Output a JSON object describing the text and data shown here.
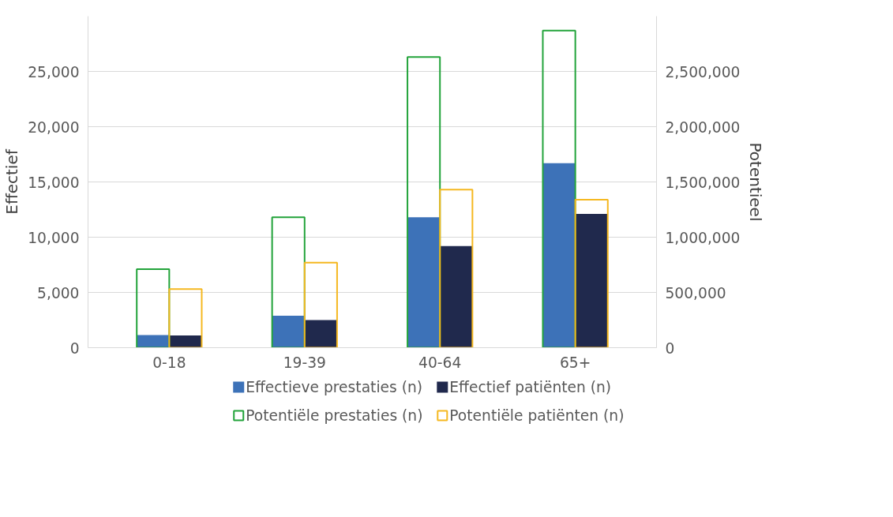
{
  "chart_data": {
    "type": "bar",
    "categories": [
      "0-18",
      "19-39",
      "40-64",
      "65+"
    ],
    "ylabel": "Effectief",
    "y2label": "Potentieel",
    "ylim": [
      0,
      30000
    ],
    "yticks": [
      {
        "value": 0,
        "label": "0"
      },
      {
        "value": 5000,
        "label": "5,000"
      },
      {
        "value": 10000,
        "label": "10,000"
      },
      {
        "value": 15000,
        "label": "15,000"
      },
      {
        "value": 20000,
        "label": "20,000"
      },
      {
        "value": 25000,
        "label": "25,000"
      }
    ],
    "y2lim": [
      0,
      3000000
    ],
    "y2ticks": [
      {
        "value": 0,
        "label": "0"
      },
      {
        "value": 500000,
        "label": "500,000"
      },
      {
        "value": 1000000,
        "label": "1,000,000"
      },
      {
        "value": 1500000,
        "label": "1,500,000"
      },
      {
        "value": 2000000,
        "label": "2,000,000"
      },
      {
        "value": 2500000,
        "label": "2,500,000"
      }
    ],
    "grid": "y",
    "legend": "bottom",
    "series": [
      {
        "name": "Effectieve prestaties (n)",
        "color": "#3d72b8",
        "values": [
          1150,
          2900,
          11800,
          16700
        ]
      },
      {
        "name": "Effectief patiënten (n)",
        "color": "#20294d",
        "values": [
          1100,
          2500,
          9200,
          12100
        ]
      },
      {
        "name": "Potentiële prestaties (n)",
        "color": "#22a33a",
        "axis": "y2",
        "values": [
          710000,
          1180000,
          2630000,
          2870000
        ]
      },
      {
        "name": "Potentiële patiënten (n)",
        "color": "#f5b820",
        "axis": "y2",
        "values": [
          530000,
          770000,
          1430000,
          1340000
        ]
      }
    ]
  }
}
